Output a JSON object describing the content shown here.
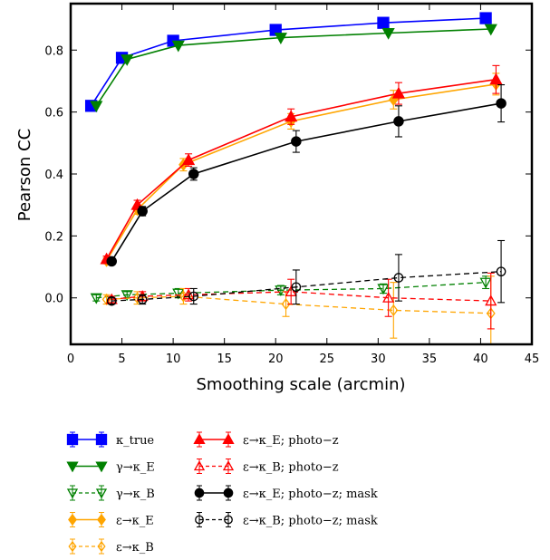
{
  "chart_data": {
    "type": "line",
    "xlabel": "Smoothing scale (arcmin)",
    "ylabel": "Pearson CC",
    "xlim": [
      0,
      45
    ],
    "ylim": [
      -0.15,
      0.95
    ],
    "xticks": [
      "0",
      "5",
      "10",
      "15",
      "20",
      "25",
      "30",
      "35",
      "40",
      "45"
    ],
    "yticks": [
      "0.0",
      "0.2",
      "0.4",
      "0.6",
      "0.8"
    ],
    "legend_position": "below",
    "series": [
      {
        "name": "κ_true",
        "color": "#0000ff",
        "marker": "square",
        "filled": true,
        "line": "solid",
        "x": [
          2,
          5,
          10,
          20,
          30.5,
          40.5
        ],
        "y": [
          0.62,
          0.775,
          0.83,
          0.865,
          0.888,
          0.903
        ],
        "err": [
          0,
          0,
          0,
          0,
          0,
          0
        ]
      },
      {
        "name": "γ→κ_E",
        "color": "#008000",
        "marker": "triangle-down",
        "filled": true,
        "line": "solid",
        "x": [
          2.5,
          5.5,
          10.5,
          20.5,
          31,
          41
        ],
        "y": [
          0.62,
          0.77,
          0.815,
          0.84,
          0.855,
          0.868
        ],
        "err": [
          0,
          0,
          0,
          0,
          0,
          0
        ]
      },
      {
        "name": "γ→κ_B",
        "color": "#008000",
        "marker": "triangle-down",
        "filled": false,
        "line": "dashed",
        "x": [
          2.5,
          5.5,
          10.5,
          20.5,
          30.5,
          40.5
        ],
        "y": [
          0.0,
          0.01,
          0.015,
          0.025,
          0.03,
          0.05
        ],
        "err": [
          0.01,
          0.01,
          0.015,
          0.015,
          0.015,
          0.02
        ]
      },
      {
        "name": "ε→κ_E",
        "color": "#ffa500",
        "marker": "diamond",
        "filled": true,
        "line": "solid",
        "x": [
          3.5,
          6.5,
          11,
          21.5,
          31.5,
          41.5
        ],
        "y": [
          0.12,
          0.285,
          0.43,
          0.57,
          0.64,
          0.69
        ],
        "err": [
          0.01,
          0.015,
          0.02,
          0.025,
          0.03,
          0.035
        ]
      },
      {
        "name": "ε→κ_B",
        "color": "#ffa500",
        "marker": "diamond",
        "filled": false,
        "line": "dashed",
        "x": [
          3.5,
          6.5,
          11,
          21,
          31.5,
          41
        ],
        "y": [
          -0.005,
          0.0,
          0.005,
          -0.02,
          -0.04,
          -0.05
        ],
        "err": [
          0.015,
          0.02,
          0.025,
          0.04,
          0.09,
          0.12
        ]
      },
      {
        "name": "ε→κ_E; photo−z",
        "color": "#ff0000",
        "marker": "triangle-up",
        "filled": true,
        "line": "solid",
        "x": [
          3.5,
          6.5,
          11.5,
          21.5,
          32,
          41.5
        ],
        "y": [
          0.125,
          0.3,
          0.445,
          0.585,
          0.66,
          0.705
        ],
        "err": [
          0.01,
          0.015,
          0.02,
          0.025,
          0.035,
          0.045
        ]
      },
      {
        "name": "ε→κ_B; photo−z",
        "color": "#ff0000",
        "marker": "triangle-up",
        "filled": false,
        "line": "dashed",
        "x": [
          4,
          7,
          11.5,
          21.5,
          31,
          41
        ],
        "y": [
          -0.005,
          0.005,
          0.01,
          0.02,
          0.0,
          -0.01
        ],
        "err": [
          0.01,
          0.015,
          0.02,
          0.04,
          0.06,
          0.09
        ]
      },
      {
        "name": "ε→κ_E; photo−z; mask",
        "color": "#000000",
        "marker": "circle",
        "filled": true,
        "line": "solid",
        "x": [
          4,
          7,
          12,
          22,
          32,
          42
        ],
        "y": [
          0.118,
          0.28,
          0.4,
          0.505,
          0.57,
          0.628
        ],
        "err": [
          0.01,
          0.015,
          0.02,
          0.035,
          0.05,
          0.06
        ]
      },
      {
        "name": "ε→κ_B; photo−z; mask",
        "color": "#000000",
        "marker": "circle",
        "filled": false,
        "line": "dashed",
        "x": [
          4,
          7,
          12,
          22,
          32,
          42
        ],
        "y": [
          -0.01,
          -0.005,
          0.005,
          0.035,
          0.065,
          0.085
        ],
        "err": [
          0.01,
          0.015,
          0.025,
          0.055,
          0.075,
          0.1
        ]
      }
    ]
  }
}
